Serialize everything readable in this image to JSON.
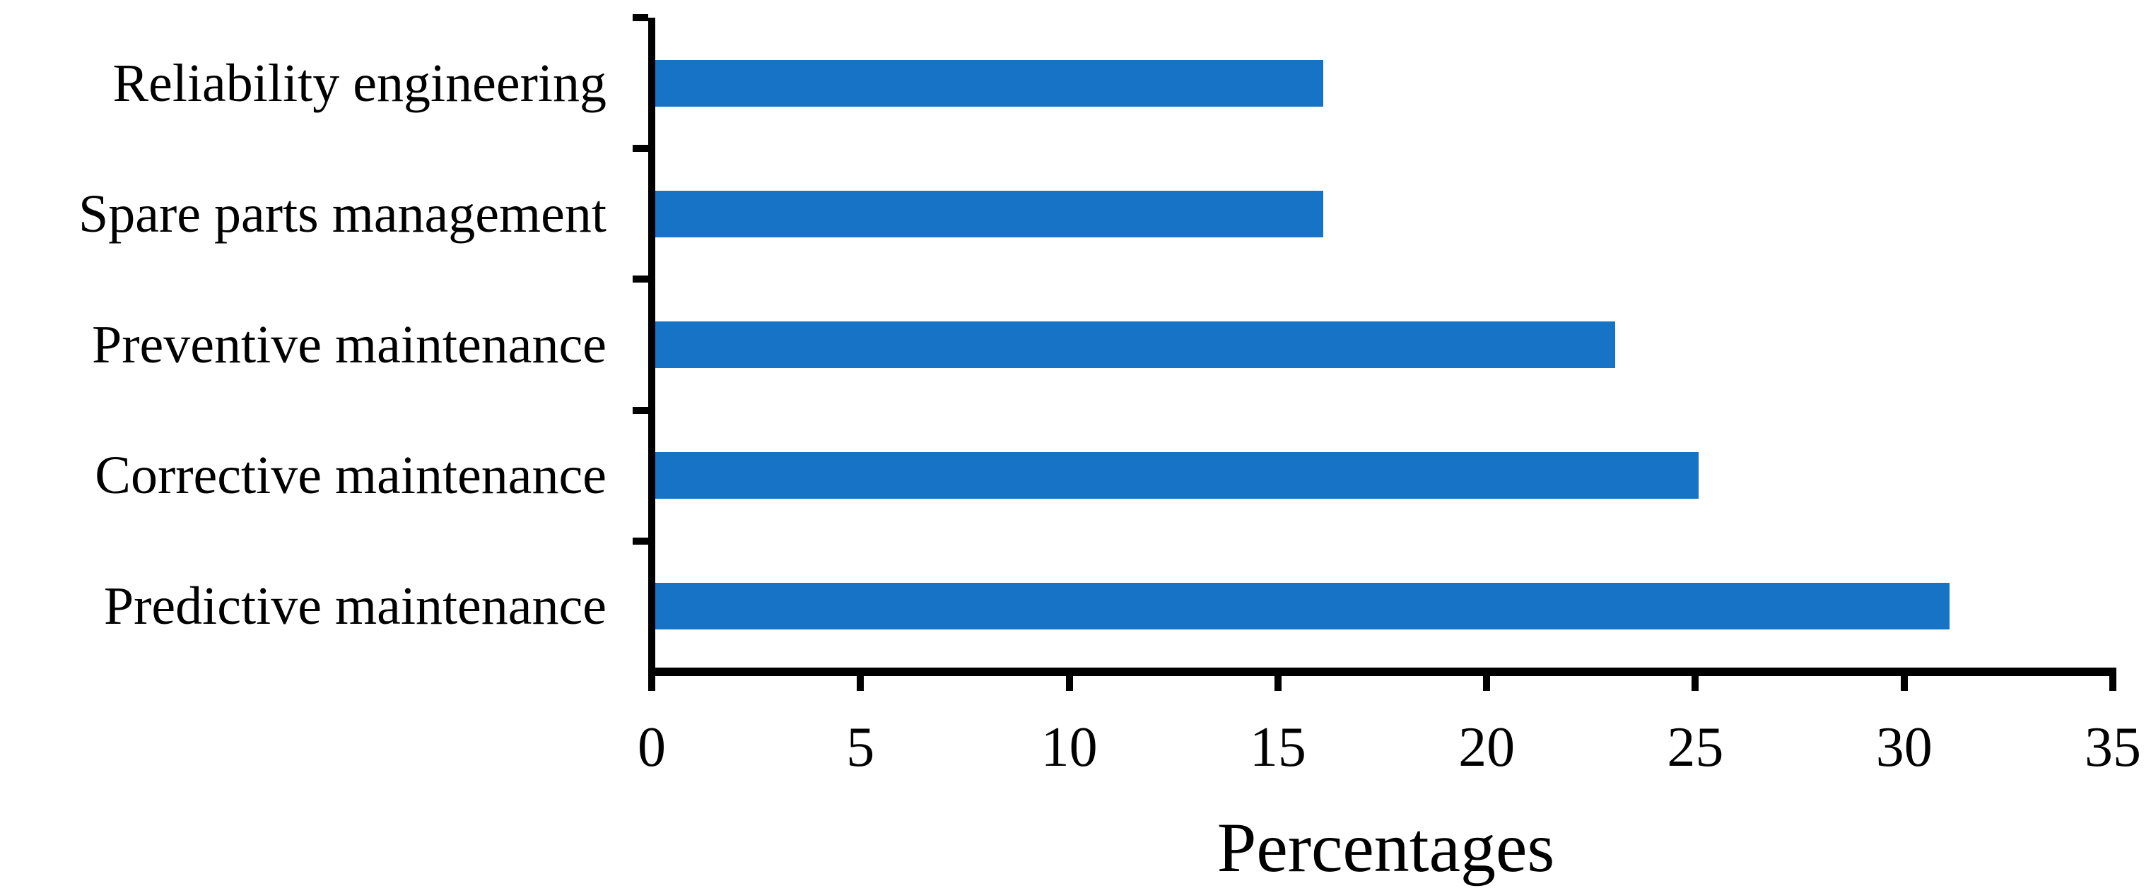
{
  "chart_data": {
    "type": "bar",
    "orientation": "horizontal",
    "categories": [
      "Reliability engineering",
      "Spare parts management",
      "Preventive maintenance",
      "Corrective maintenance",
      "Predictive maintenance"
    ],
    "values": [
      16,
      16,
      23,
      25,
      31
    ],
    "title": "",
    "xlabel": "Percentages",
    "ylabel": "",
    "xlim": [
      0,
      35
    ],
    "x_ticks": [
      0,
      5,
      10,
      15,
      20,
      25,
      30,
      35
    ],
    "x_tick_labels": [
      "0",
      "5",
      "10",
      "15",
      "20",
      "25",
      "30",
      "35"
    ],
    "grid": false,
    "legend": false,
    "bar_color": "#1773C6",
    "axis_color": "#000000",
    "background_color": "#ffffff"
  }
}
